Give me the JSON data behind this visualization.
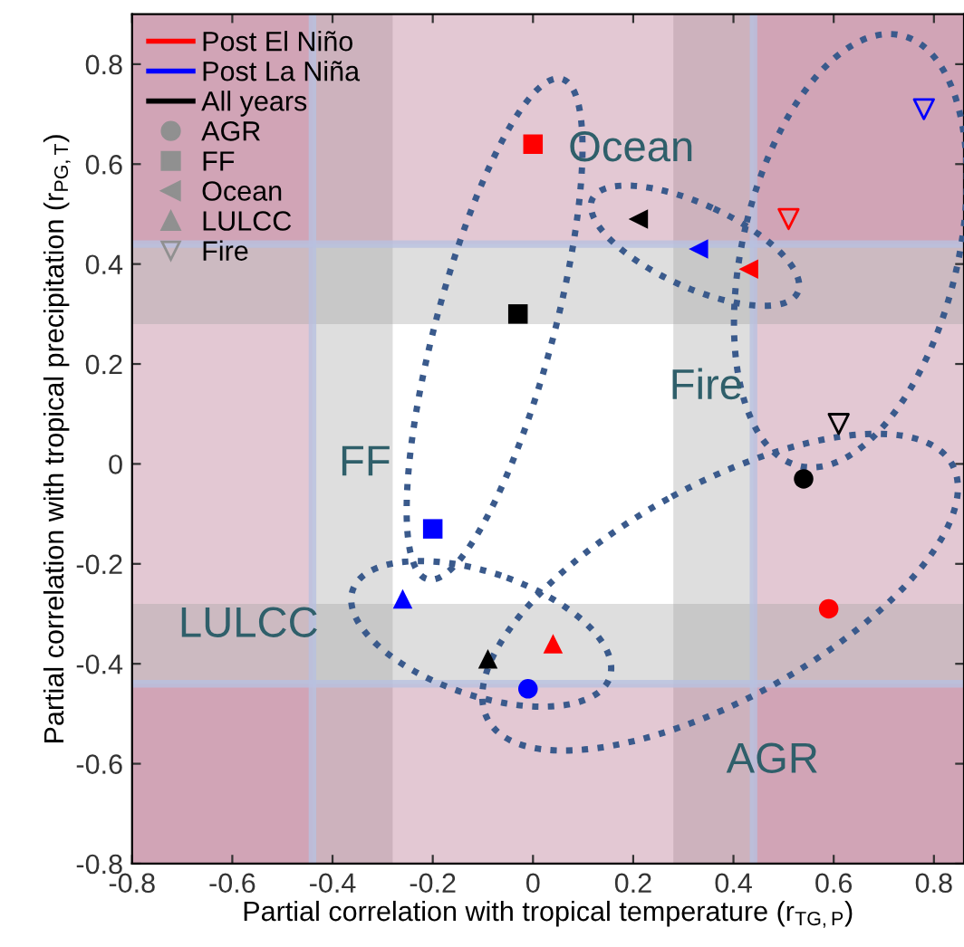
{
  "chart_data": {
    "type": "scatter",
    "xlabel": "Partial correlation with tropical temperature (r$_{TG,P}$)",
    "ylabel": "Partial correlation with tropical precipitation (r$_{PG,T}$)",
    "xlim": [
      -0.8,
      0.86
    ],
    "ylim": [
      -0.8,
      0.9
    ],
    "xticks": [
      -0.8,
      -0.6,
      -0.4,
      -0.2,
      0,
      0.2,
      0.4,
      0.6,
      0.8
    ],
    "yticks": [
      -0.8,
      -0.6,
      -0.4,
      -0.2,
      0,
      0.2,
      0.4,
      0.6,
      0.8
    ],
    "grid": false,
    "legend": "top left",
    "series": [
      {
        "name": "Post El Niño",
        "type": "line",
        "color": "#ff0000"
      },
      {
        "name": "Post La Niña",
        "type": "line",
        "color": "#0000ff"
      },
      {
        "name": "All years",
        "type": "line",
        "color": "#000000"
      },
      {
        "name": "AGR",
        "color": "#909090",
        "marker": "circle"
      },
      {
        "name": "FF",
        "color": "#909090",
        "marker": "square"
      },
      {
        "name": "Ocean",
        "color": "#909090",
        "marker": "triangle-left"
      },
      {
        "name": "LULCC",
        "color": "#909090",
        "marker": "triangle"
      },
      {
        "name": "Fire",
        "color": "#909090",
        "marker": "triangle-down"
      },
      {
        "color": "#ff0000",
        "marker": "circle",
        "x": [
          0.59
        ],
        "values": [
          -0.29
        ]
      },
      {
        "color": "#0000ff",
        "marker": "circle",
        "x": [
          -0.01
        ],
        "values": [
          -0.45
        ]
      },
      {
        "color": "#000000",
        "marker": "circle",
        "x": [
          0.54
        ],
        "values": [
          -0.03
        ]
      },
      {
        "color": "#ff0000",
        "marker": "square",
        "x": [
          0.0
        ],
        "values": [
          0.64
        ]
      },
      {
        "color": "#0000ff",
        "marker": "square",
        "x": [
          -0.2
        ],
        "values": [
          -0.13
        ]
      },
      {
        "color": "#000000",
        "marker": "square",
        "x": [
          -0.03
        ],
        "values": [
          0.3
        ]
      },
      {
        "color": "#ff0000",
        "marker": "triangle-left",
        "x": [
          0.43
        ],
        "values": [
          0.39
        ]
      },
      {
        "color": "#0000ff",
        "marker": "triangle-left",
        "x": [
          0.33
        ],
        "values": [
          0.43
        ]
      },
      {
        "color": "#000000",
        "marker": "triangle-left",
        "x": [
          0.21
        ],
        "values": [
          0.49
        ]
      },
      {
        "color": "#ff0000",
        "marker": "triangle",
        "x": [
          0.04
        ],
        "values": [
          -0.36
        ]
      },
      {
        "color": "#0000ff",
        "marker": "triangle",
        "x": [
          -0.26
        ],
        "values": [
          -0.27
        ]
      },
      {
        "color": "#000000",
        "marker": "triangle",
        "x": [
          -0.09
        ],
        "values": [
          -0.39
        ]
      },
      {
        "color": "#ff0000",
        "marker": "triangle-down",
        "x": [
          0.51
        ],
        "values": [
          0.49
        ]
      },
      {
        "color": "#0000ff",
        "marker": "triangle-down",
        "x": [
          0.78
        ],
        "values": [
          0.71
        ]
      },
      {
        "color": "#000000",
        "marker": "triangle-down",
        "x": [
          0.61
        ],
        "values": [
          0.08
        ]
      }
    ],
    "bands": [
      {
        "axis": "x",
        "from": -0.8,
        "to": -0.44,
        "color": "#b06080"
      },
      {
        "axis": "x",
        "from": -0.44,
        "to": -0.28,
        "color": "#a0a0a0"
      },
      {
        "axis": "x",
        "from": 0.28,
        "to": 0.44,
        "color": "#a0a0a0"
      },
      {
        "axis": "x",
        "from": 0.44,
        "to": 0.86,
        "color": "#b06080"
      },
      {
        "axis": "y",
        "from": -0.8,
        "to": -0.44,
        "color": "#b06080"
      },
      {
        "axis": "y",
        "from": -0.44,
        "to": -0.28,
        "color": "#a0a0a0"
      },
      {
        "axis": "y",
        "from": 0.28,
        "to": 0.44,
        "color": "#a0a0a0"
      },
      {
        "axis": "y",
        "from": 0.44,
        "to": 0.9,
        "color": "#b06080"
      }
    ],
    "annotations": [
      "FF",
      "Ocean",
      "Fire",
      "LULCC",
      "AGR"
    ]
  }
}
